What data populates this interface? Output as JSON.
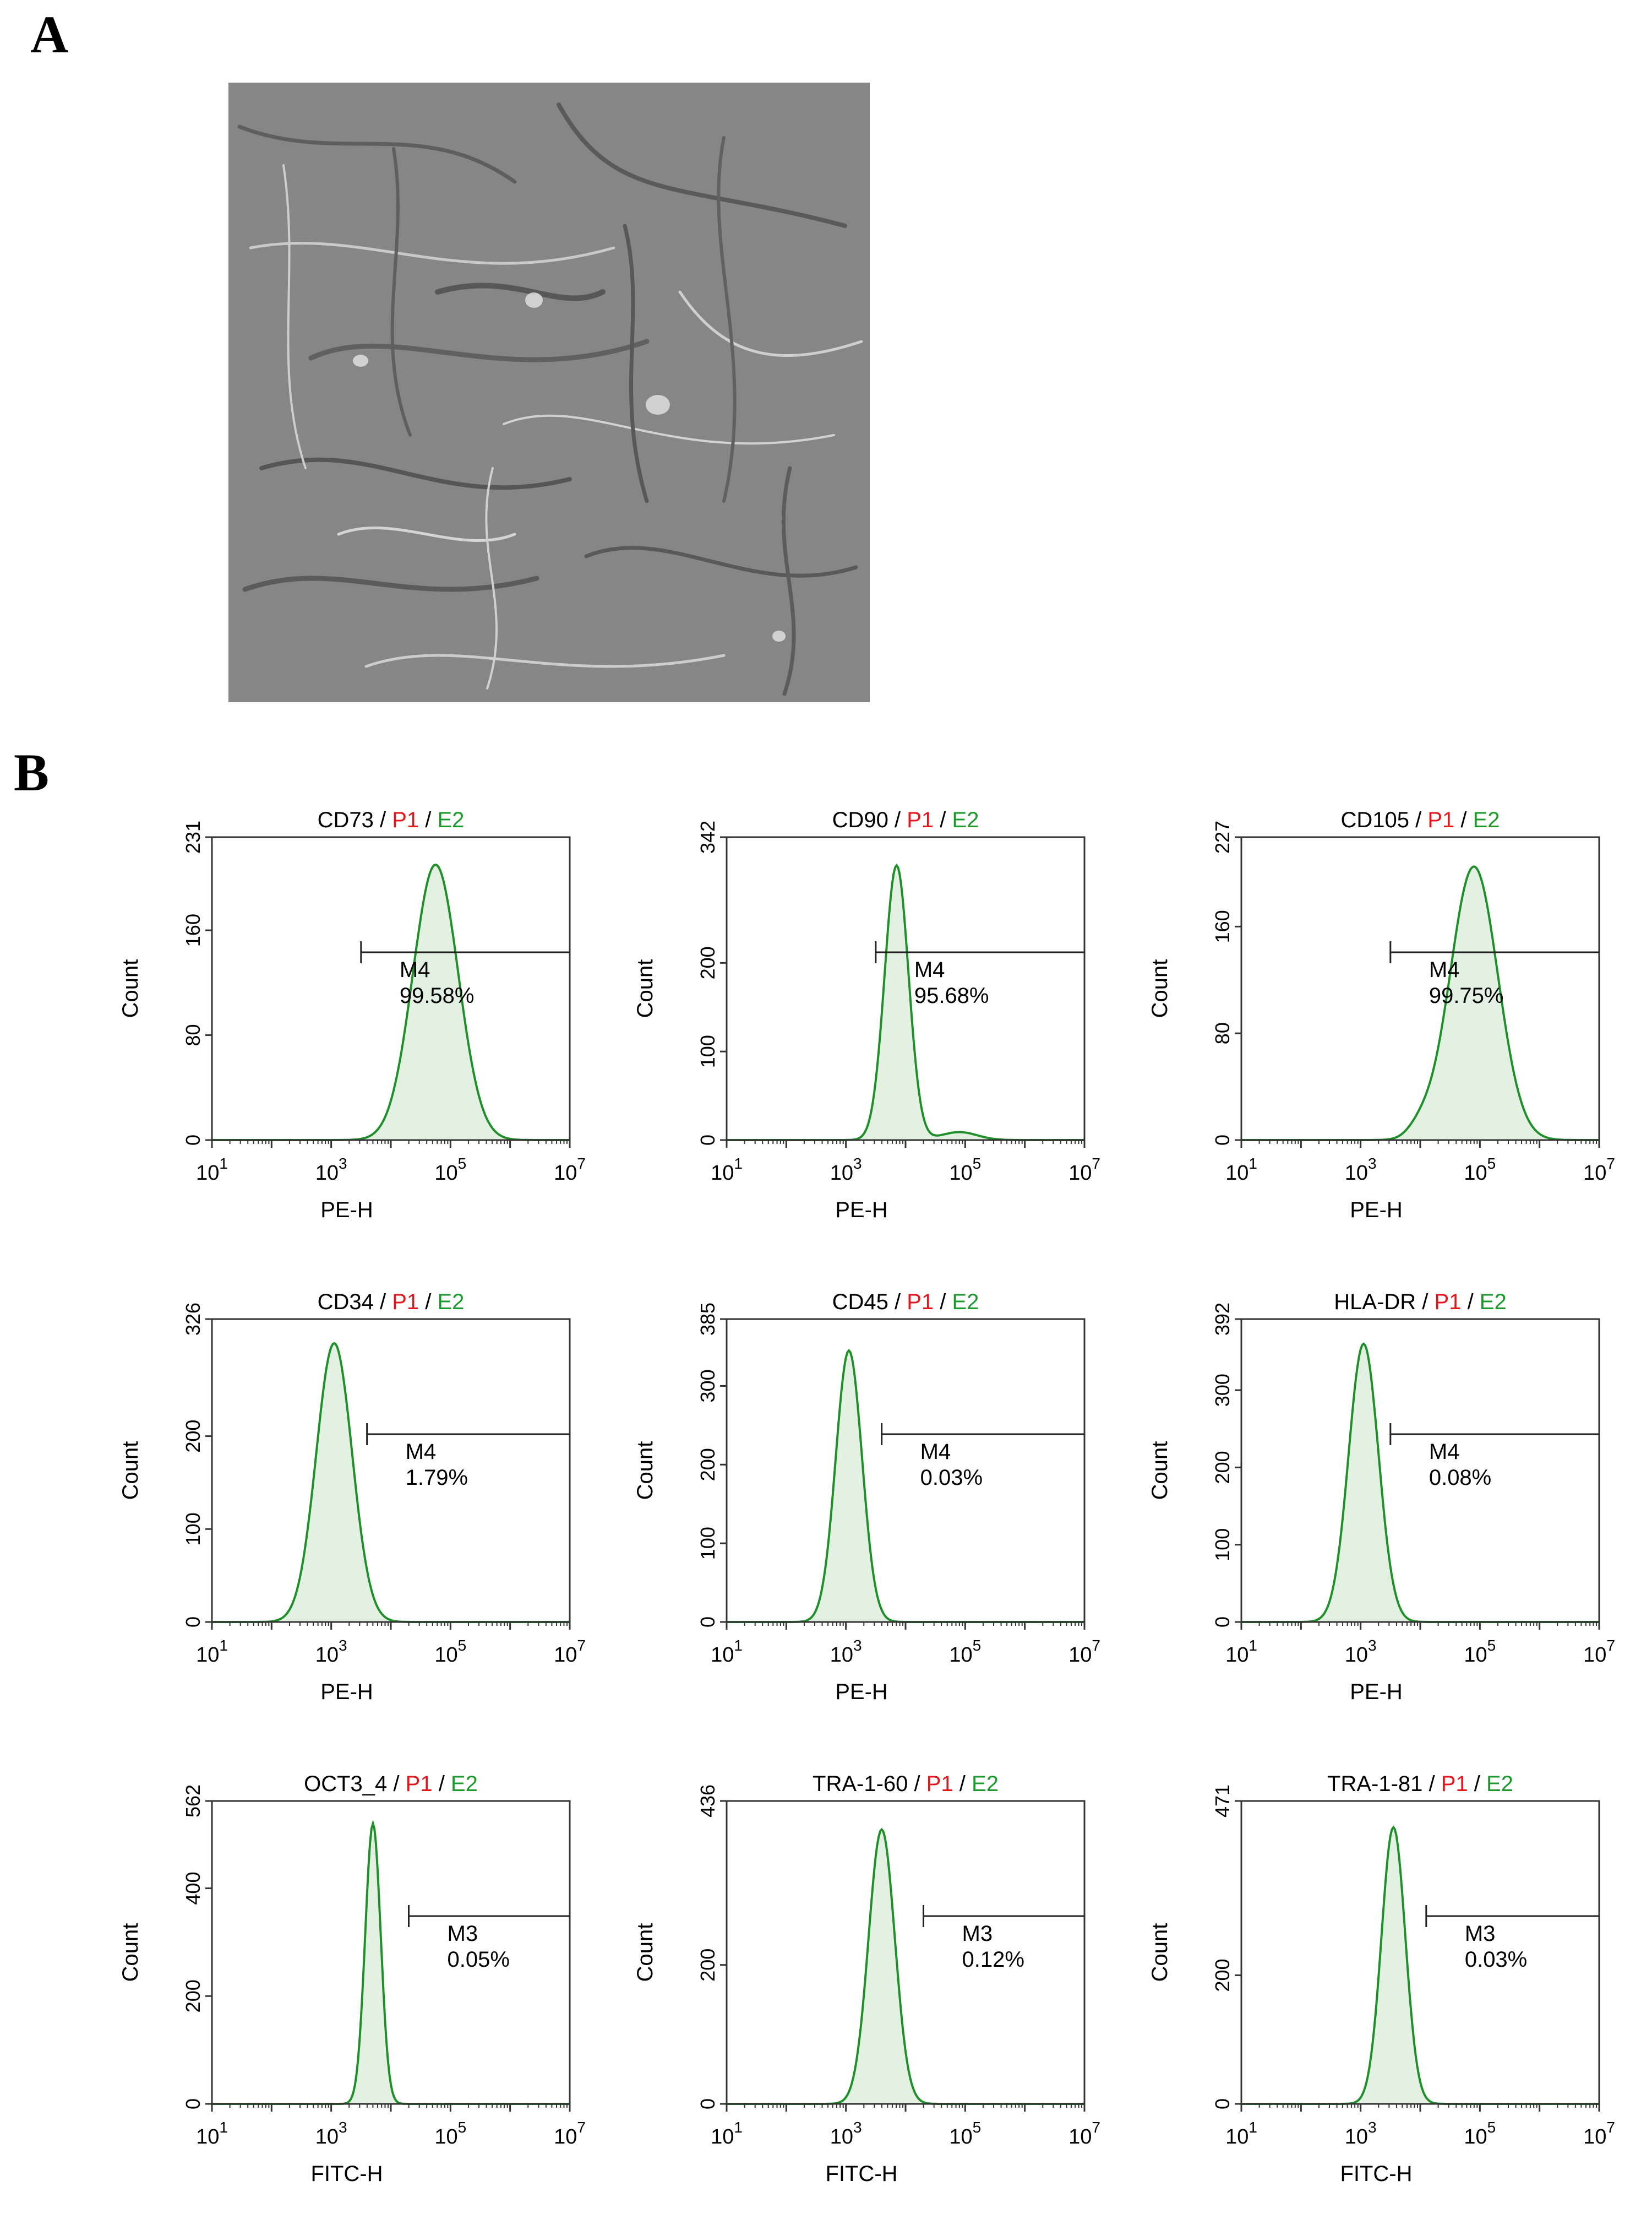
{
  "figure": {
    "panel_a_label": "A",
    "panel_b_label": "B",
    "separator": " / ",
    "gate_p1": "P1",
    "gate_e2": "E2",
    "colors": {
      "p1": "#e8141c",
      "e2": "#1a9a2a",
      "curve": "#1f8f2a",
      "fill": "#e3f1e3"
    }
  },
  "chart_data": [
    {
      "type": "area",
      "title": "CD73",
      "xlabel": "PE-H",
      "ylabel": "Count",
      "xlim_log10": [
        1,
        7
      ],
      "xticks_log10": [
        1,
        3,
        5,
        7
      ],
      "ylim": [
        0,
        231
      ],
      "yticks": [
        0,
        80,
        160,
        231
      ],
      "gate": {
        "name": "M4",
        "percent": "99.58%",
        "start_log10": 3.5,
        "end_log10": 7
      },
      "peak": {
        "center_log10": 4.75,
        "max_count": 210,
        "width": 0.38,
        "minor": []
      }
    },
    {
      "type": "area",
      "title": "CD90",
      "xlabel": "PE-H",
      "ylabel": "Count",
      "xlim_log10": [
        1,
        7
      ],
      "xticks_log10": [
        1,
        3,
        5,
        7
      ],
      "ylim": [
        0,
        342
      ],
      "yticks": [
        0,
        100,
        200,
        342
      ],
      "gate": {
        "name": "M4",
        "percent": "95.68%",
        "start_log10": 3.5,
        "end_log10": 7
      },
      "peak": {
        "center_log10": 3.85,
        "max_count": 310,
        "width": 0.2,
        "minor": [
          [
            4.9,
            9,
            0.3
          ]
        ]
      }
    },
    {
      "type": "area",
      "title": "CD105",
      "xlabel": "PE-H",
      "ylabel": "Count",
      "xlim_log10": [
        1,
        7
      ],
      "xticks_log10": [
        1,
        3,
        5,
        7
      ],
      "ylim": [
        0,
        227
      ],
      "yticks": [
        0,
        80,
        160,
        227
      ],
      "gate": {
        "name": "M4",
        "percent": "99.75%",
        "start_log10": 3.5,
        "end_log10": 7
      },
      "peak": {
        "center_log10": 4.9,
        "max_count": 205,
        "width": 0.4,
        "minor": [
          [
            4.0,
            8,
            0.2
          ]
        ]
      }
    },
    {
      "type": "area",
      "title": "CD34",
      "xlabel": "PE-H",
      "ylabel": "Count",
      "xlim_log10": [
        1,
        7
      ],
      "xticks_log10": [
        1,
        3,
        5,
        7
      ],
      "ylim": [
        0,
        326
      ],
      "yticks": [
        0,
        100,
        200,
        326
      ],
      "gate": {
        "name": "M4",
        "percent": "1.79%",
        "start_log10": 3.6,
        "end_log10": 7
      },
      "peak": {
        "center_log10": 3.05,
        "max_count": 300,
        "width": 0.3,
        "minor": []
      }
    },
    {
      "type": "area",
      "title": "CD45",
      "xlabel": "PE-H",
      "ylabel": "Count",
      "xlim_log10": [
        1,
        7
      ],
      "xticks_log10": [
        1,
        3,
        5,
        7
      ],
      "ylim": [
        0,
        385
      ],
      "yticks": [
        0,
        100,
        200,
        300,
        385
      ],
      "gate": {
        "name": "M4",
        "percent": "0.03%",
        "start_log10": 3.6,
        "end_log10": 7
      },
      "peak": {
        "center_log10": 3.05,
        "max_count": 345,
        "width": 0.22,
        "minor": []
      }
    },
    {
      "type": "area",
      "title": "HLA-DR",
      "xlabel": "PE-H",
      "ylabel": "Count",
      "xlim_log10": [
        1,
        7
      ],
      "xticks_log10": [
        1,
        3,
        5,
        7
      ],
      "ylim": [
        0,
        392
      ],
      "yticks": [
        0,
        100,
        200,
        300,
        392
      ],
      "gate": {
        "name": "M4",
        "percent": "0.08%",
        "start_log10": 3.5,
        "end_log10": 7
      },
      "peak": {
        "center_log10": 3.05,
        "max_count": 360,
        "width": 0.25,
        "minor": []
      }
    },
    {
      "type": "area",
      "title": "OCT3_4",
      "xlabel": "FITC-H",
      "ylabel": "Count",
      "xlim_log10": [
        1,
        7
      ],
      "xticks_log10": [
        1,
        3,
        5,
        7
      ],
      "ylim": [
        0,
        562
      ],
      "yticks": [
        0,
        200,
        400,
        562
      ],
      "gate": {
        "name": "M3",
        "percent": "0.05%",
        "start_log10": 4.3,
        "end_log10": 7
      },
      "peak": {
        "center_log10": 3.7,
        "max_count": 520,
        "width": 0.13,
        "minor": []
      }
    },
    {
      "type": "area",
      "title": "TRA-1-60",
      "xlabel": "FITC-H",
      "ylabel": "Count",
      "xlim_log10": [
        1,
        7
      ],
      "xticks_log10": [
        1,
        3,
        5,
        7
      ],
      "ylim": [
        0,
        436
      ],
      "yticks": [
        0,
        200,
        436
      ],
      "gate": {
        "name": "M3",
        "percent": "0.12%",
        "start_log10": 4.3,
        "end_log10": 7
      },
      "peak": {
        "center_log10": 3.6,
        "max_count": 395,
        "width": 0.22,
        "minor": []
      }
    },
    {
      "type": "area",
      "title": "TRA-1-81",
      "xlabel": "FITC-H",
      "ylabel": "Count",
      "xlim_log10": [
        1,
        7
      ],
      "xticks_log10": [
        1,
        3,
        5,
        7
      ],
      "ylim": [
        0,
        471
      ],
      "yticks": [
        0,
        200,
        471
      ],
      "gate": {
        "name": "M3",
        "percent": "0.03%",
        "start_log10": 4.1,
        "end_log10": 7
      },
      "peak": {
        "center_log10": 3.55,
        "max_count": 430,
        "width": 0.2,
        "minor": []
      }
    }
  ]
}
